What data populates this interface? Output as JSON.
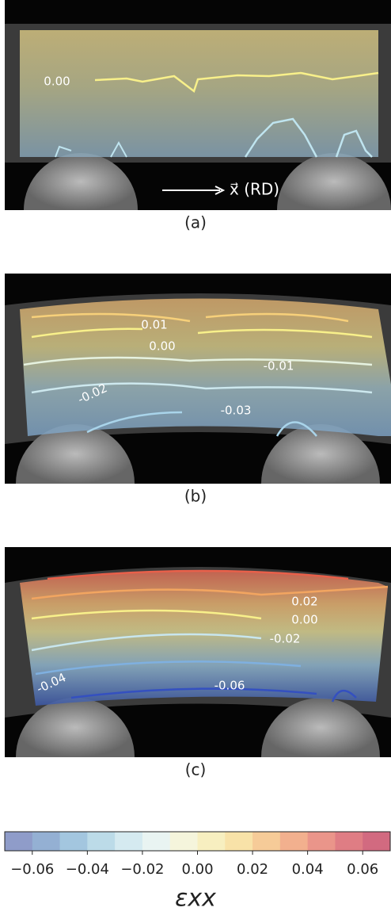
{
  "panels": [
    {
      "label": "(a)",
      "contour_labels": [
        "0.00"
      ],
      "annotation": "x⃗ (RD)"
    },
    {
      "label": "(b)",
      "contour_labels": [
        "0.01",
        "0.00",
        "-0.01",
        "-0.02",
        "-0.03"
      ]
    },
    {
      "label": "(c)",
      "contour_labels": [
        "0.02",
        "0.00",
        "-0.02",
        "-0.04",
        "-0.06"
      ]
    }
  ],
  "colorbar": {
    "label": "εxx",
    "range": [
      -0.07,
      0.07
    ],
    "colors": [
      "#8f9cc9",
      "#94b0d3",
      "#a3c6df",
      "#bcdbe8",
      "#d5eaf0",
      "#e9f4f2",
      "#f5f5dc",
      "#f7efc0",
      "#f8e2a8",
      "#f6cb98",
      "#f2b08e",
      "#ea958a",
      "#df7d84",
      "#d26a80"
    ],
    "ticks": [
      {
        "value": -0.06,
        "label": "−0.06"
      },
      {
        "value": -0.04,
        "label": "−0.04"
      },
      {
        "value": -0.02,
        "label": "−0.02"
      },
      {
        "value": 0,
        "label": "0.00"
      },
      {
        "value": 0.02,
        "label": "0.02"
      },
      {
        "value": 0.04,
        "label": "0.04"
      },
      {
        "value": 0.06,
        "label": "0.06"
      }
    ]
  }
}
